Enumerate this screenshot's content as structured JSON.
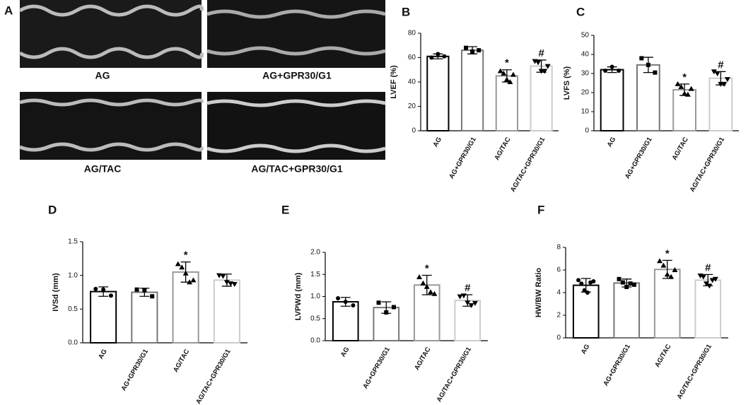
{
  "panel_a": {
    "letter": "A",
    "labels": [
      "AG",
      "AG+GPR30/G1",
      "AG/TAC",
      "AG/TAC+GPR30/G1"
    ]
  },
  "chart_data": [
    {
      "type": "bar",
      "letter": "B",
      "ylabel": "LVEF (%)",
      "categories": [
        "AG",
        "AG+GPR30/G1",
        "AG/TAC",
        "AG/TAC+GPR30/G1"
      ],
      "values": [
        61,
        66,
        45,
        53
      ],
      "errors": [
        2,
        3,
        5,
        5
      ],
      "points": [
        [
          60,
          63,
          61
        ],
        [
          68,
          65,
          66
        ],
        [
          49,
          47,
          42,
          40,
          46
        ],
        [
          57,
          56,
          49,
          49,
          53
        ]
      ],
      "markers": [
        null,
        null,
        "*",
        "#"
      ],
      "ylim": [
        0,
        80
      ],
      "yticks": [
        0,
        20,
        40,
        60,
        80
      ],
      "bar_colors": [
        "#000000",
        "#777777",
        "#999999",
        "#cccccc"
      ],
      "point_shapes": [
        "circle",
        "square",
        "triangle",
        "triangle-down"
      ]
    },
    {
      "type": "bar",
      "letter": "C",
      "ylabel": "LVFS (%)",
      "categories": [
        "AG",
        "AG+GPR30/G1",
        "AG/TAC",
        "AG/TAC+GPR30/G1"
      ],
      "values": [
        32,
        34.5,
        21.5,
        27.5
      ],
      "errors": [
        1.5,
        4,
        3,
        3.5
      ],
      "points": [
        [
          31.5,
          33.5,
          31.5
        ],
        [
          38,
          34.5,
          30.5
        ],
        [
          24.5,
          23,
          19.5,
          19,
          22
        ],
        [
          31,
          30,
          24.5,
          24.5,
          27
        ]
      ],
      "markers": [
        null,
        null,
        "*",
        "#"
      ],
      "ylim": [
        0,
        50
      ],
      "yticks": [
        0,
        10,
        20,
        30,
        40,
        50
      ],
      "bar_colors": [
        "#000000",
        "#777777",
        "#999999",
        "#cccccc"
      ],
      "point_shapes": [
        "circle",
        "square",
        "triangle",
        "triangle-down"
      ]
    },
    {
      "type": "bar",
      "letter": "D",
      "ylabel": "IVSd (mm)",
      "categories": [
        "AG",
        "AG+GPR30/G1",
        "AG/TAC",
        "AG/TAC+GPR30/G1"
      ],
      "values": [
        0.76,
        0.75,
        1.05,
        0.93
      ],
      "errors": [
        0.07,
        0.06,
        0.15,
        0.09
      ],
      "points": [
        [
          0.8,
          0.79,
          0.7
        ],
        [
          0.79,
          0.78,
          0.69
        ],
        [
          1.17,
          1.12,
          1.03,
          0.9,
          0.93
        ],
        [
          1.0,
          0.99,
          0.9,
          0.88,
          0.87
        ]
      ],
      "markers": [
        null,
        null,
        "*",
        null
      ],
      "ylim": [
        0,
        1.5
      ],
      "yticks": [
        {
          "value": 0,
          "label": "0.0"
        },
        {
          "value": 0.5,
          "label": "0.5"
        },
        {
          "value": 1,
          "label": "1.0"
        },
        {
          "value": 1.5,
          "label": "1.5"
        }
      ],
      "bar_colors": [
        "#000000",
        "#777777",
        "#999999",
        "#cccccc"
      ],
      "point_shapes": [
        "circle",
        "square",
        "triangle",
        "triangle-down"
      ]
    },
    {
      "type": "bar",
      "letter": "E",
      "ylabel": "LVPWd (mm)",
      "categories": [
        "AG",
        "AG+GPR30/G1",
        "AG/TAC",
        "AG/TAC+GPR30/G1"
      ],
      "values": [
        0.88,
        0.75,
        1.26,
        0.91
      ],
      "errors": [
        0.1,
        0.13,
        0.22,
        0.13
      ],
      "points": [
        [
          0.96,
          0.88,
          0.8
        ],
        [
          0.86,
          0.64,
          0.76
        ],
        [
          1.44,
          1.3,
          1.22,
          1.1,
          1.06
        ],
        [
          1.0,
          1.02,
          0.86,
          0.8,
          0.85
        ]
      ],
      "markers": [
        null,
        null,
        "*",
        "#"
      ],
      "ylim": [
        0,
        2
      ],
      "yticks": [
        {
          "value": 0,
          "label": "0.0"
        },
        {
          "value": 0.5,
          "label": "0.5"
        },
        {
          "value": 1,
          "label": "1.0"
        },
        {
          "value": 1.5,
          "label": "1.5"
        },
        {
          "value": 2,
          "label": "2.0"
        }
      ],
      "bar_colors": [
        "#000000",
        "#777777",
        "#999999",
        "#cccccc"
      ],
      "point_shapes": [
        "circle",
        "square",
        "triangle",
        "triangle-down"
      ]
    },
    {
      "type": "bar",
      "letter": "F",
      "ylabel": "HW/BW Ratio",
      "categories": [
        "AG",
        "AG+GPR30/G1",
        "AG/TAC",
        "AG/TAC+GPR30/G1"
      ],
      "values": [
        4.65,
        4.85,
        6.05,
        5.1
      ],
      "errors": [
        0.6,
        0.35,
        0.8,
        0.5
      ],
      "points": [
        [
          5.1,
          4.8,
          4.2,
          4.0,
          4.9,
          5.0
        ],
        [
          5.2,
          4.9,
          4.5,
          4.8,
          4.7
        ],
        [
          6.8,
          6.4,
          5.6,
          5.4,
          6.0
        ],
        [
          5.5,
          5.4,
          4.8,
          4.6,
          5.1,
          5.2
        ]
      ],
      "markers": [
        null,
        null,
        "*",
        "#"
      ],
      "ylim": [
        0,
        8
      ],
      "yticks": [
        0,
        2,
        4,
        6,
        8
      ],
      "bar_colors": [
        "#000000",
        "#777777",
        "#999999",
        "#cccccc"
      ],
      "point_shapes": [
        "circle",
        "square",
        "triangle",
        "triangle-down"
      ]
    }
  ]
}
